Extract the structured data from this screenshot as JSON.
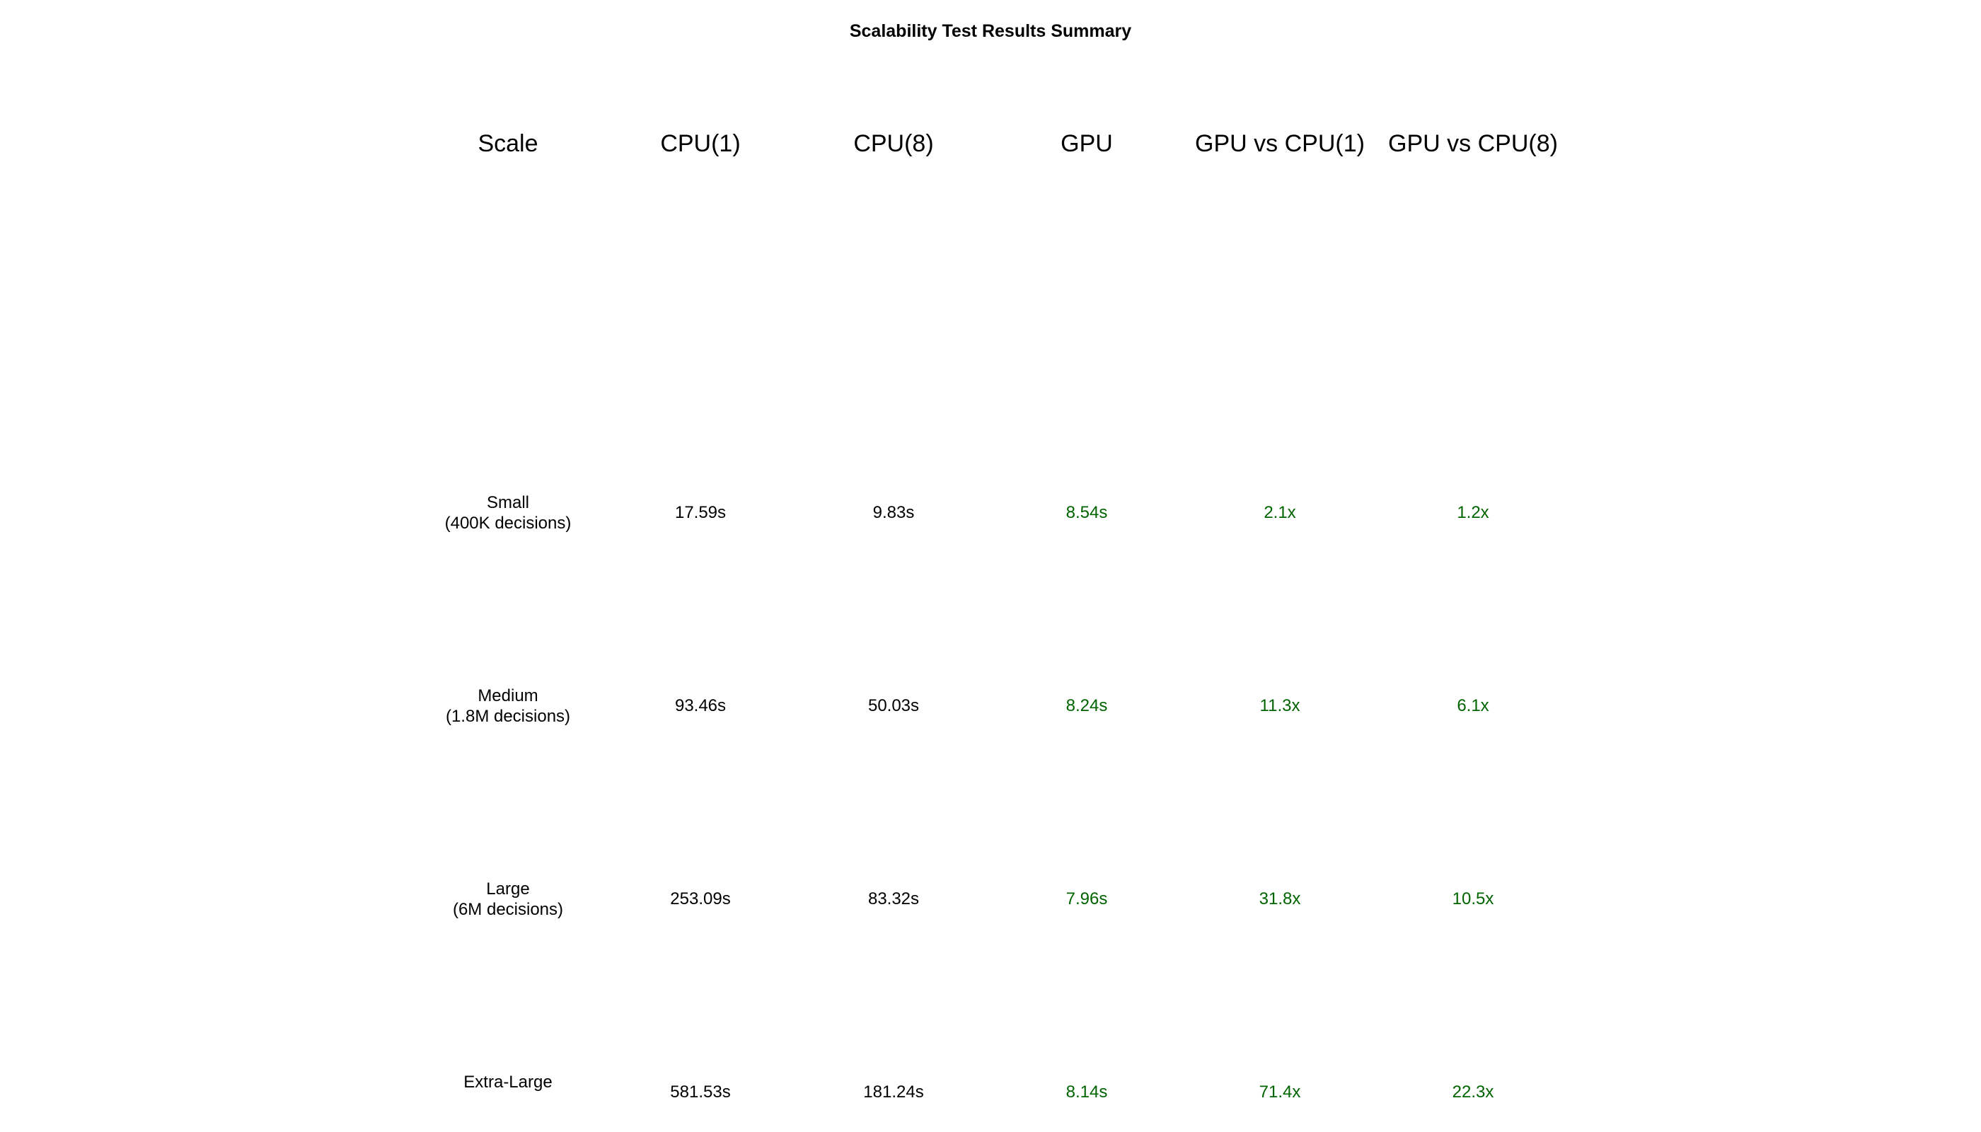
{
  "title": "Scalability Test Results Summary",
  "accent_color": "#006400",
  "chart_data": {
    "type": "table",
    "title": "Scalability Test Results Summary",
    "columns": [
      "Scale",
      "CPU(1)",
      "CPU(8)",
      "GPU",
      "GPU vs CPU(1)",
      "GPU vs CPU(8)"
    ],
    "rows": [
      {
        "scale": "Small",
        "detail": "(400K decisions)",
        "cpu1": "17.59s",
        "cpu8": "9.83s",
        "gpu": "8.54s",
        "gpu_vs_cpu1": "2.1x",
        "gpu_vs_cpu8": "1.2x"
      },
      {
        "scale": "Medium",
        "detail": "(1.8M decisions)",
        "cpu1": "93.46s",
        "cpu8": "50.03s",
        "gpu": "8.24s",
        "gpu_vs_cpu1": "11.3x",
        "gpu_vs_cpu8": "6.1x"
      },
      {
        "scale": "Large",
        "detail": "(6M decisions)",
        "cpu1": "253.09s",
        "cpu8": "83.32s",
        "gpu": "7.96s",
        "gpu_vs_cpu1": "31.8x",
        "gpu_vs_cpu8": "10.5x"
      },
      {
        "scale": "Extra-Large",
        "detail": "",
        "cpu1": "581.53s",
        "cpu8": "181.24s",
        "gpu": "8.14s",
        "gpu_vs_cpu1": "71.4x",
        "gpu_vs_cpu8": "22.3x"
      }
    ],
    "highlight_columns": [
      "gpu",
      "gpu_vs_cpu1",
      "gpu_vs_cpu8"
    ]
  }
}
